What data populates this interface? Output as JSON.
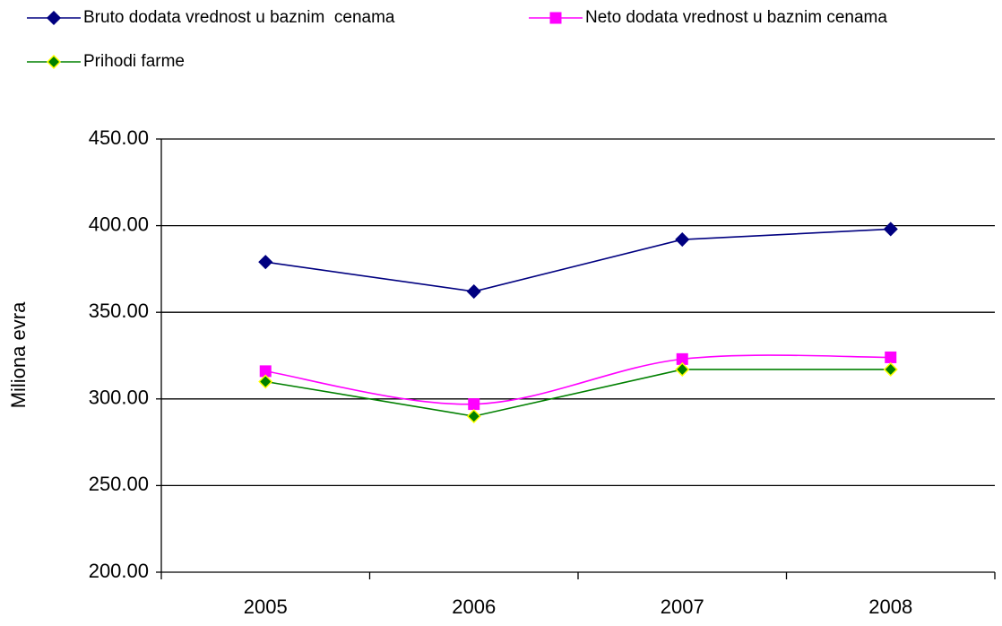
{
  "chart_data": {
    "type": "line",
    "y_label": "Miliona evra",
    "categories": [
      "2005",
      "2006",
      "2007",
      "2008"
    ],
    "series": [
      {
        "name": "Bruto dodata vrednost u baznim  cenama",
        "color": "#000080",
        "marker": "diamond",
        "smooth": false,
        "values": [
          379,
          362,
          392,
          398
        ]
      },
      {
        "name": "Neto dodata vrednost u baznim cenama",
        "color": "#ff00ff",
        "marker": "square",
        "smooth": true,
        "values": [
          316,
          297,
          323,
          324
        ]
      },
      {
        "name": "Prihodi farme",
        "color": "#008000",
        "marker": "diamond",
        "marker_edge": "#ffff00",
        "smooth": false,
        "values": [
          310,
          290,
          317,
          317
        ]
      }
    ],
    "ylim": [
      200,
      450
    ],
    "yticks": [
      {
        "value": 200,
        "label": "200.00"
      },
      {
        "value": 250,
        "label": "250.00"
      },
      {
        "value": 300,
        "label": "300.00"
      },
      {
        "value": 350,
        "label": "350.00"
      },
      {
        "value": 400,
        "label": "400.00"
      },
      {
        "value": 450,
        "label": "450.00"
      }
    ],
    "grid": true,
    "legend": "top"
  }
}
